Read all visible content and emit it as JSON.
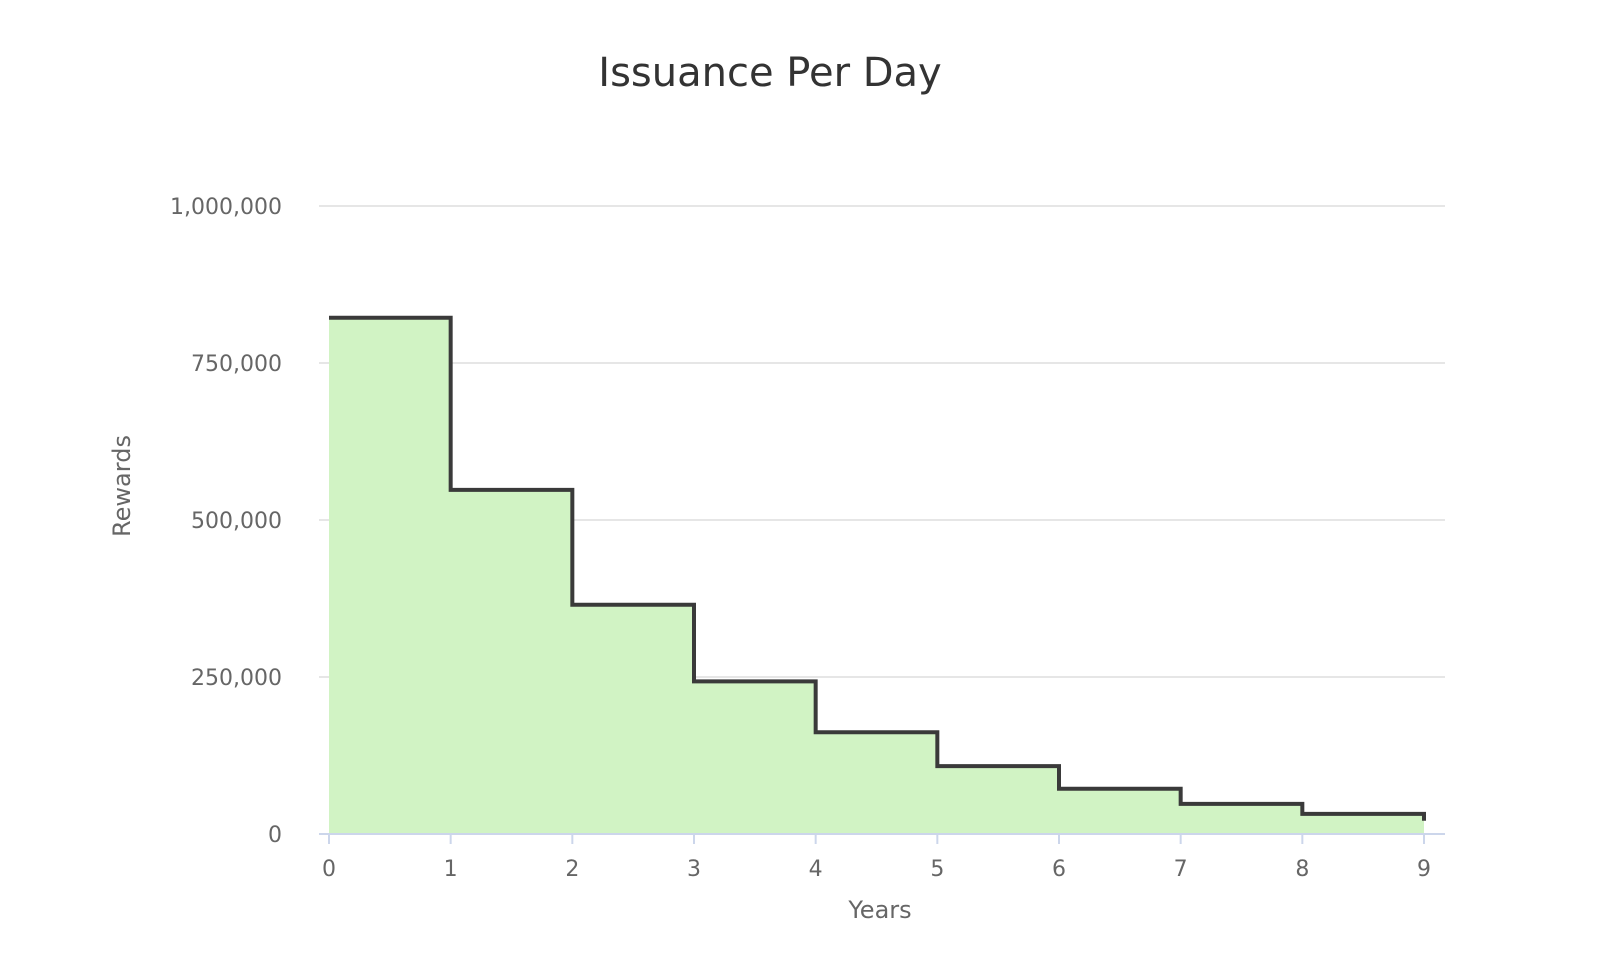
{
  "chart_data": {
    "type": "area",
    "step": true,
    "title": "Issuance Per Day",
    "xlabel": "Years",
    "ylabel": "Rewards",
    "x_ticks": [
      "0",
      "1",
      "2",
      "3",
      "4",
      "5",
      "6",
      "7",
      "8",
      "9"
    ],
    "y_ticks": [
      "0",
      "250,000",
      "500,000",
      "750,000",
      "1,000,000"
    ],
    "y_tick_values": [
      0,
      250000,
      500000,
      750000,
      1000000
    ],
    "xlim": [
      0,
      9
    ],
    "ylim": [
      0,
      1000000
    ],
    "grid": true,
    "legend": false,
    "series": [
      {
        "x": [
          0,
          1,
          2,
          3,
          4,
          5,
          6,
          7,
          8,
          9
        ],
        "values": [
          822000,
          548000,
          365000,
          243000,
          162000,
          108000,
          72000,
          48000,
          32000,
          21000
        ]
      }
    ]
  },
  "colors": {
    "fill": "#d1f3c4",
    "line": "#3a3a3a"
  }
}
